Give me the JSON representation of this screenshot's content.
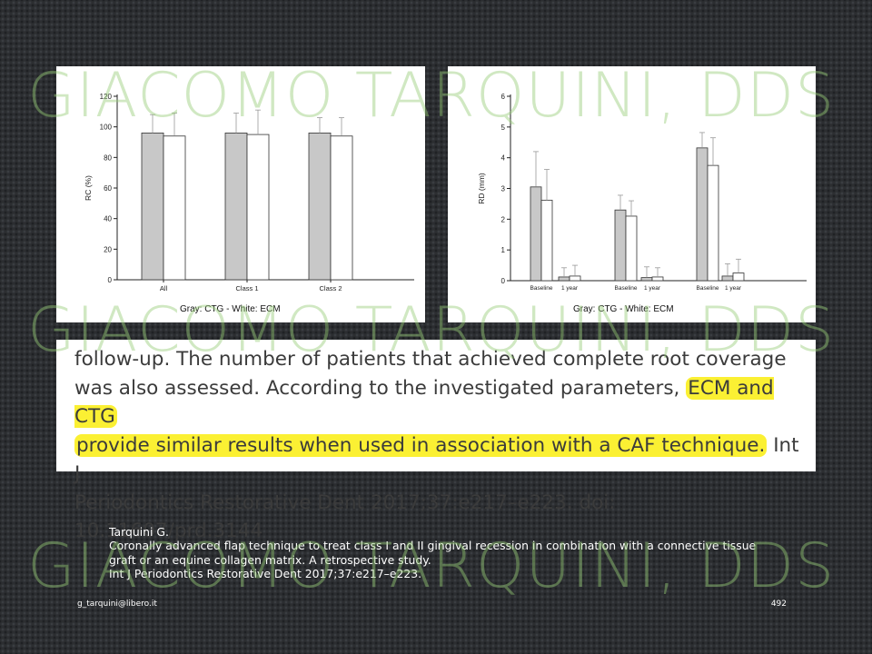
{
  "chart_data": [
    {
      "type": "bar",
      "ylabel": "RC (%)",
      "ylim": [
        0,
        120
      ],
      "yticks": [
        0,
        20,
        40,
        60,
        80,
        100,
        120
      ],
      "categories": [
        "All",
        "Class 1",
        "Class 2"
      ],
      "series": [
        {
          "color": "#c8c8c8",
          "values": [
            96,
            96,
            96
          ],
          "errors": [
            12,
            13,
            10
          ]
        },
        {
          "color": "#ffffff",
          "values": [
            94,
            95,
            94
          ],
          "errors": [
            15,
            16,
            12
          ]
        }
      ],
      "caption": "Gray: CTG - White: ECM"
    },
    {
      "type": "bar",
      "ylabel": "RD (mm)",
      "ylim": [
        0,
        6
      ],
      "yticks": [
        0,
        1,
        2,
        3,
        4,
        5,
        6
      ],
      "groups": [
        {
          "categories": [
            "Baseline",
            "1 year"
          ]
        },
        {
          "categories": [
            "Baseline",
            "1 year"
          ]
        },
        {
          "categories": [
            "Baseline",
            "1 year"
          ]
        }
      ],
      "series": [
        {
          "color": "#c8c8c8",
          "values": [
            3.05,
            0.12,
            2.3,
            0.1,
            4.32,
            0.15
          ],
          "errors": [
            1.15,
            0.3,
            0.48,
            0.35,
            0.5,
            0.4
          ]
        },
        {
          "color": "#ffffff",
          "values": [
            2.62,
            0.15,
            2.1,
            0.12,
            3.75,
            0.25
          ],
          "errors": [
            1.0,
            0.35,
            0.5,
            0.3,
            0.9,
            0.45
          ]
        }
      ],
      "caption": "Gray: CTG - White: ECM"
    }
  ],
  "excerpt": {
    "line1": "follow-up. The number of patients that achieved complete root coverage",
    "line2_plain": "was also assessed. According to the investigated parameters, ",
    "line2_hl": "ECM and CTG",
    "line3_hl": "provide similar results when used in association with a CAF technique.",
    "line3_plain": " Int J",
    "line4": "Periodontics Restorative Dent 2017;37:e217–e223. doi: 10.11607/prd.3144"
  },
  "watermark": "GIACOMO TARQUINI, DDS",
  "citation": {
    "author": "Tarquini G.",
    "title": "Coronally advanced flap technique to treat class I and II gingival recession in combination with a connective tissue graft or an equine collagen matrix. A retrospective study.",
    "journal": "Int J Periodontics Restorative Dent 2017;37:e217–e223."
  },
  "footer": {
    "email": "g_tarquini@libero.it",
    "page": "492"
  }
}
